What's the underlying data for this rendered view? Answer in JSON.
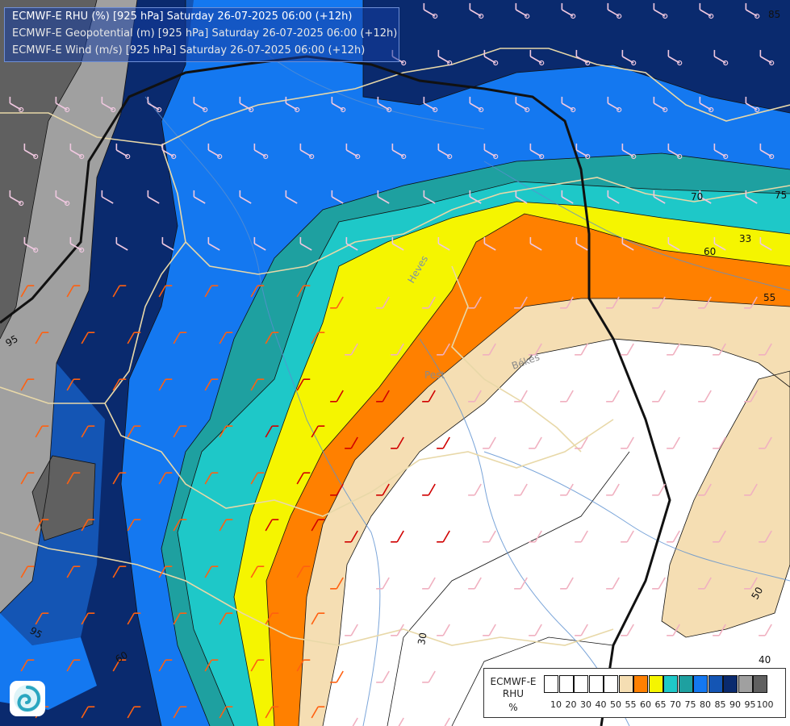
{
  "header": {
    "line1": "ECMWF-E RHU (%) [925 hPa] Saturday 26-07-2025 06:00 (+12h)",
    "line2": "ECMWF-E Geopotential (m) [925 hPa] Saturday 26-07-2025 06:00 (+12h)",
    "line3": "ECMWF-E Wind (m/s) [925 hPa] Saturday 26-07-2025 06:00 (+12h)"
  },
  "legend": {
    "title_line1": "ECMWF-E",
    "title_line2": "RHU",
    "title_line3": "%",
    "levels": [
      {
        "label": "10",
        "color": "#ffffff"
      },
      {
        "label": "20",
        "color": "#ffffff"
      },
      {
        "label": "30",
        "color": "#ffffff"
      },
      {
        "label": "40",
        "color": "#ffffff"
      },
      {
        "label": "50",
        "color": "#ffffff"
      },
      {
        "label": "55",
        "color": "#f5deb3"
      },
      {
        "label": "60",
        "color": "#ff8000"
      },
      {
        "label": "65",
        "color": "#f5f500"
      },
      {
        "label": "70",
        "color": "#1ec8c8"
      },
      {
        "label": "75",
        "color": "#1ea0a0"
      },
      {
        "label": "80",
        "color": "#1478f0"
      },
      {
        "label": "85",
        "color": "#1455b4"
      },
      {
        "label": "90",
        "color": "#0a2a6e"
      },
      {
        "label": "95",
        "color": "#a0a0a0"
      },
      {
        "label": "100",
        "color": "#606060"
      }
    ]
  },
  "contour_labels": [
    "85",
    "75",
    "70",
    "33",
    "60",
    "55",
    "50",
    "40",
    "30",
    "60",
    "95",
    "95"
  ],
  "place_labels": [
    "Pest",
    "Békés",
    "Heves"
  ],
  "colors": {
    "humid_very_high": "#606060",
    "humid_high": "#a0a0a0",
    "navy": "#0a2a6e",
    "dark_blue": "#1455b4",
    "blue": "#1478f0",
    "teal": "#1ea0a0",
    "cyan": "#1ec8c8",
    "yellow": "#f5f500",
    "orange": "#ff8000",
    "beige": "#f5deb3",
    "dry": "#ffffff",
    "borders": "#e8d8a8",
    "rivers": "#5a8fd0",
    "geopotential": "#111111"
  }
}
